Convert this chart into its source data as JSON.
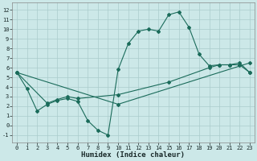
{
  "background_color": "#cce8e8",
  "grid_color": "#aacccc",
  "line_color": "#1a6b5a",
  "xlabel": "Humidex (Indice chaleur)",
  "xlim": [
    -0.5,
    23.5
  ],
  "ylim": [
    -1.8,
    12.8
  ],
  "xticks": [
    0,
    1,
    2,
    3,
    4,
    5,
    6,
    7,
    8,
    9,
    10,
    11,
    12,
    13,
    14,
    15,
    16,
    17,
    18,
    19,
    20,
    21,
    22,
    23
  ],
  "yticks": [
    -1,
    0,
    1,
    2,
    3,
    4,
    5,
    6,
    7,
    8,
    9,
    10,
    11,
    12
  ],
  "curve1_x": [
    0,
    1,
    2,
    3,
    4,
    5,
    6,
    7,
    8,
    9,
    10,
    11,
    12,
    13,
    14,
    15,
    16,
    17,
    18,
    19,
    20,
    21,
    22,
    23
  ],
  "curve1_y": [
    5.5,
    3.8,
    1.5,
    2.2,
    2.6,
    2.8,
    2.5,
    0.5,
    -0.5,
    -1.0,
    5.8,
    8.5,
    9.8,
    10.0,
    9.8,
    11.5,
    11.8,
    10.2,
    7.4,
    6.2,
    6.3,
    6.3,
    6.3,
    5.5
  ],
  "curve2_x": [
    0,
    3,
    4,
    5,
    6,
    10,
    15,
    19,
    20,
    21,
    22,
    23
  ],
  "curve2_y": [
    5.5,
    2.3,
    2.7,
    3.0,
    2.8,
    3.2,
    4.5,
    6.0,
    6.3,
    6.3,
    6.5,
    5.5
  ],
  "curve3_x": [
    0,
    10,
    23
  ],
  "curve3_y": [
    5.5,
    2.2,
    6.5
  ],
  "marker": "D",
  "markersize": 2.0,
  "linewidth": 0.8,
  "tick_labelsize": 5.0,
  "xlabel_fontsize": 6.5
}
